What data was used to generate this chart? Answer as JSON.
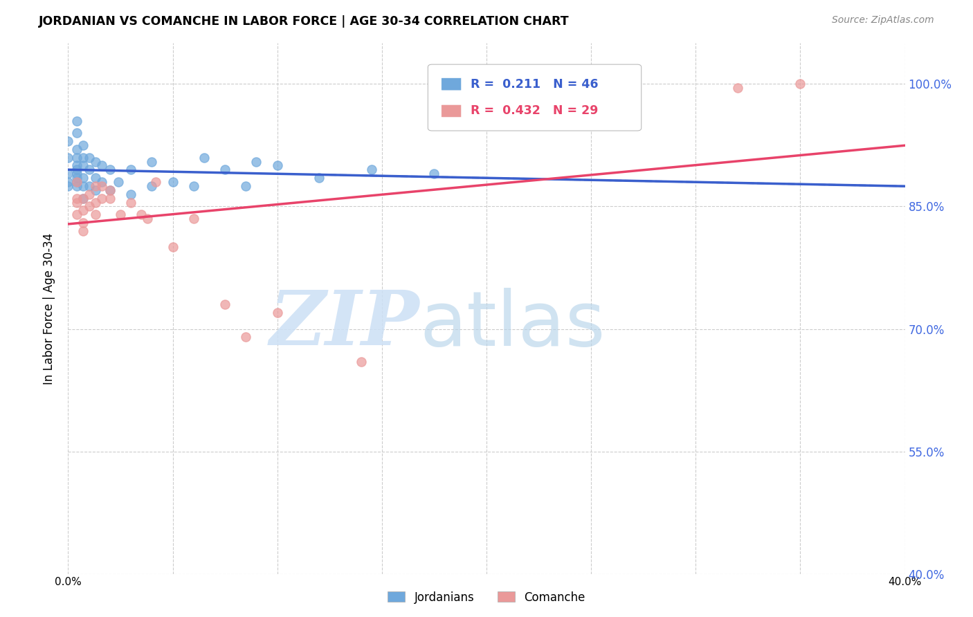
{
  "title": "JORDANIAN VS COMANCHE IN LABOR FORCE | AGE 30-34 CORRELATION CHART",
  "source": "Source: ZipAtlas.com",
  "ylabel": "In Labor Force | Age 30-34",
  "x_min": 0.0,
  "x_max": 0.4,
  "y_min": 0.4,
  "y_max": 1.05,
  "x_ticks": [
    0.0,
    0.05,
    0.1,
    0.15,
    0.2,
    0.25,
    0.3,
    0.35,
    0.4
  ],
  "y_ticks": [
    0.4,
    0.55,
    0.7,
    0.85,
    1.0
  ],
  "y_tick_labels": [
    "40.0%",
    "55.0%",
    "70.0%",
    "85.0%",
    "100.0%"
  ],
  "jordanian_color": "#6fa8dc",
  "comanche_color": "#ea9999",
  "jordanian_line_color": "#3a5fcd",
  "comanche_line_color": "#e8436a",
  "background_color": "#ffffff",
  "grid_color": "#cccccc",
  "jordanian_x": [
    0.0,
    0.0,
    0.0,
    0.0,
    0.0,
    0.004,
    0.004,
    0.004,
    0.004,
    0.004,
    0.004,
    0.004,
    0.004,
    0.004,
    0.004,
    0.007,
    0.007,
    0.007,
    0.007,
    0.007,
    0.007,
    0.01,
    0.01,
    0.01,
    0.013,
    0.013,
    0.013,
    0.016,
    0.016,
    0.02,
    0.02,
    0.024,
    0.03,
    0.03,
    0.04,
    0.04,
    0.05,
    0.06,
    0.065,
    0.075,
    0.085,
    0.09,
    0.1,
    0.12,
    0.145,
    0.175
  ],
  "jordanian_y": [
    0.875,
    0.88,
    0.89,
    0.91,
    0.93,
    0.875,
    0.88,
    0.885,
    0.89,
    0.895,
    0.9,
    0.91,
    0.92,
    0.94,
    0.955,
    0.86,
    0.875,
    0.885,
    0.9,
    0.91,
    0.925,
    0.875,
    0.895,
    0.91,
    0.87,
    0.885,
    0.905,
    0.88,
    0.9,
    0.87,
    0.895,
    0.88,
    0.865,
    0.895,
    0.875,
    0.905,
    0.88,
    0.875,
    0.91,
    0.895,
    0.875,
    0.905,
    0.9,
    0.885,
    0.895,
    0.89
  ],
  "comanche_x": [
    0.004,
    0.004,
    0.004,
    0.004,
    0.007,
    0.007,
    0.007,
    0.007,
    0.01,
    0.01,
    0.013,
    0.013,
    0.013,
    0.016,
    0.016,
    0.02,
    0.02,
    0.025,
    0.03,
    0.035,
    0.038,
    0.042,
    0.05,
    0.06,
    0.075,
    0.085,
    0.1,
    0.14,
    0.32,
    0.35
  ],
  "comanche_y": [
    0.86,
    0.88,
    0.855,
    0.84,
    0.86,
    0.845,
    0.83,
    0.82,
    0.85,
    0.865,
    0.875,
    0.855,
    0.84,
    0.875,
    0.86,
    0.87,
    0.86,
    0.84,
    0.855,
    0.84,
    0.835,
    0.88,
    0.8,
    0.835,
    0.73,
    0.69,
    0.72,
    0.66,
    0.995,
    1.0
  ]
}
